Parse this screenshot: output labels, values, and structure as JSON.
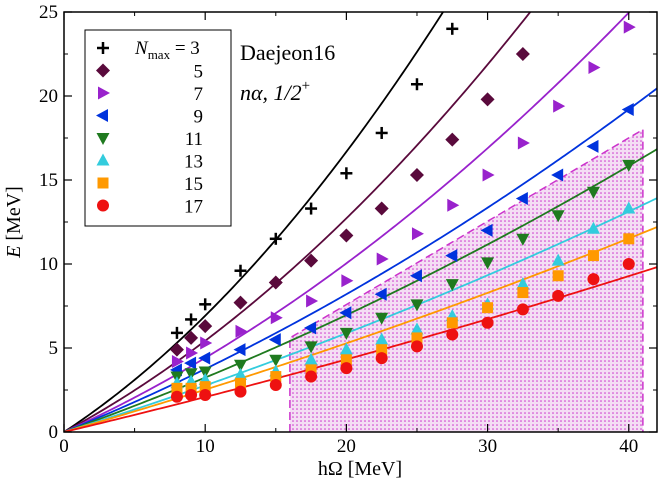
{
  "chart_data": {
    "type": "scatter",
    "title": "",
    "annotation_line1": "Daejeon16",
    "annotation_line2": "nα, 1/2",
    "annotation_line2_sup": "+",
    "xlabel": "hΩ [MeV]",
    "ylabel_main": "E",
    "ylabel_unit": " [MeV]",
    "xlim": [
      0,
      42
    ],
    "ylim": [
      0,
      25
    ],
    "xticks": [
      0,
      10,
      20,
      30,
      40
    ],
    "yticks": [
      0,
      5,
      10,
      15,
      20,
      25
    ],
    "legend_position": "top-left",
    "legend_header_var": "N",
    "legend_header_sub": "max",
    "legend_header_eq": " = 3",
    "shaded_region": {
      "x_min": 16,
      "x_max": 41,
      "upper_y_at_x_min": 5.6,
      "upper_y_at_x_max": 18,
      "color": "#cc33cc"
    },
    "series": [
      {
        "name": "3",
        "label": "3",
        "marker": "plus",
        "color": "#000000",
        "x": [
          8,
          9,
          10,
          12.5,
          15,
          17.5,
          20,
          22.5,
          25,
          27.5
        ],
        "y": [
          5.9,
          6.7,
          7.6,
          9.6,
          11.5,
          13.3,
          15.4,
          17.8,
          20.7,
          24.0
        ],
        "fit": {
          "a": 0.55,
          "b": 0.0142
        }
      },
      {
        "name": "5",
        "label": "5",
        "marker": "diamond",
        "color": "#5a0a3c",
        "x": [
          8,
          9,
          10,
          12.5,
          15,
          17.5,
          20,
          22.5,
          25,
          27.5,
          30,
          32.5
        ],
        "y": [
          4.9,
          5.6,
          6.3,
          7.7,
          8.9,
          10.2,
          11.7,
          13.3,
          15.3,
          17.4,
          19.8,
          22.5
        ],
        "fit": {
          "a": 0.45,
          "b": 0.0093
        }
      },
      {
        "name": "7",
        "label": "7",
        "marker": "tri-right",
        "color": "#9922cc",
        "x": [
          8,
          9,
          10,
          12.5,
          15,
          17.5,
          20,
          22.5,
          25,
          27.5,
          30,
          32.5,
          35,
          37.5,
          40
        ],
        "y": [
          4.2,
          4.7,
          5.3,
          6.0,
          6.8,
          7.8,
          9.0,
          10.3,
          11.8,
          13.5,
          15.3,
          17.2,
          19.4,
          21.7,
          24.1
        ],
        "fit": {
          "a": 0.38,
          "b": 0.0061
        }
      },
      {
        "name": "9",
        "label": "9",
        "marker": "tri-left",
        "color": "#0033dd",
        "x": [
          8,
          9,
          10,
          12.5,
          15,
          17.5,
          20,
          22.5,
          25,
          27.5,
          30,
          32.5,
          35,
          37.5,
          40
        ],
        "y": [
          3.7,
          4.1,
          4.4,
          4.9,
          5.5,
          6.2,
          7.1,
          8.2,
          9.3,
          10.5,
          12.0,
          13.9,
          15.3,
          17.0,
          19.2
        ],
        "fit": {
          "a": 0.34,
          "b": 0.0035
        }
      },
      {
        "name": "11",
        "label": "11",
        "marker": "tri-down",
        "color": "#1f7a1f",
        "x": [
          8,
          9,
          10,
          12.5,
          15,
          17.5,
          20,
          22.5,
          25,
          27.5,
          30,
          32.5,
          35,
          37.5,
          40
        ],
        "y": [
          3.3,
          3.5,
          3.6,
          4.0,
          4.3,
          5.1,
          5.9,
          6.8,
          7.6,
          8.8,
          10.1,
          11.5,
          12.9,
          14.3,
          15.9
        ],
        "fit": {
          "a": 0.3,
          "b": 0.0024
        }
      },
      {
        "name": "13",
        "label": "13",
        "marker": "tri-up",
        "color": "#33ccdd",
        "x": [
          8,
          9,
          10,
          12.5,
          15,
          17.5,
          20,
          22.5,
          25,
          27.5,
          30,
          32.5,
          35,
          37.5,
          40
        ],
        "y": [
          2.9,
          3.0,
          3.1,
          3.4,
          3.6,
          4.3,
          4.9,
          5.5,
          6.1,
          6.9,
          7.6,
          8.8,
          10.2,
          12.1,
          13.3
        ],
        "fit": {
          "a": 0.26,
          "b": 0.0017
        }
      },
      {
        "name": "15",
        "label": "15",
        "marker": "square",
        "color": "#ff9900",
        "x": [
          8,
          9,
          10,
          12.5,
          15,
          17.5,
          20,
          22.5,
          25,
          27.5,
          30,
          32.5,
          35,
          37.5,
          40
        ],
        "y": [
          2.6,
          2.6,
          2.7,
          2.9,
          3.3,
          3.7,
          4.3,
          4.9,
          5.6,
          6.5,
          7.4,
          8.3,
          9.3,
          10.5,
          11.5
        ],
        "fit": {
          "a": 0.24,
          "b": 0.0012
        }
      },
      {
        "name": "17",
        "label": "17",
        "marker": "circle",
        "color": "#ee1111",
        "x": [
          8,
          9,
          10,
          12.5,
          15,
          17.5,
          20,
          22.5,
          25,
          27.5,
          30,
          32.5,
          35,
          37.5,
          40
        ],
        "y": [
          2.1,
          2.2,
          2.2,
          2.4,
          2.8,
          3.3,
          3.8,
          4.4,
          5.1,
          5.8,
          6.5,
          7.3,
          8.1,
          9.1,
          10.0
        ],
        "fit": {
          "a": 0.2,
          "b": 0.0008
        }
      }
    ]
  }
}
